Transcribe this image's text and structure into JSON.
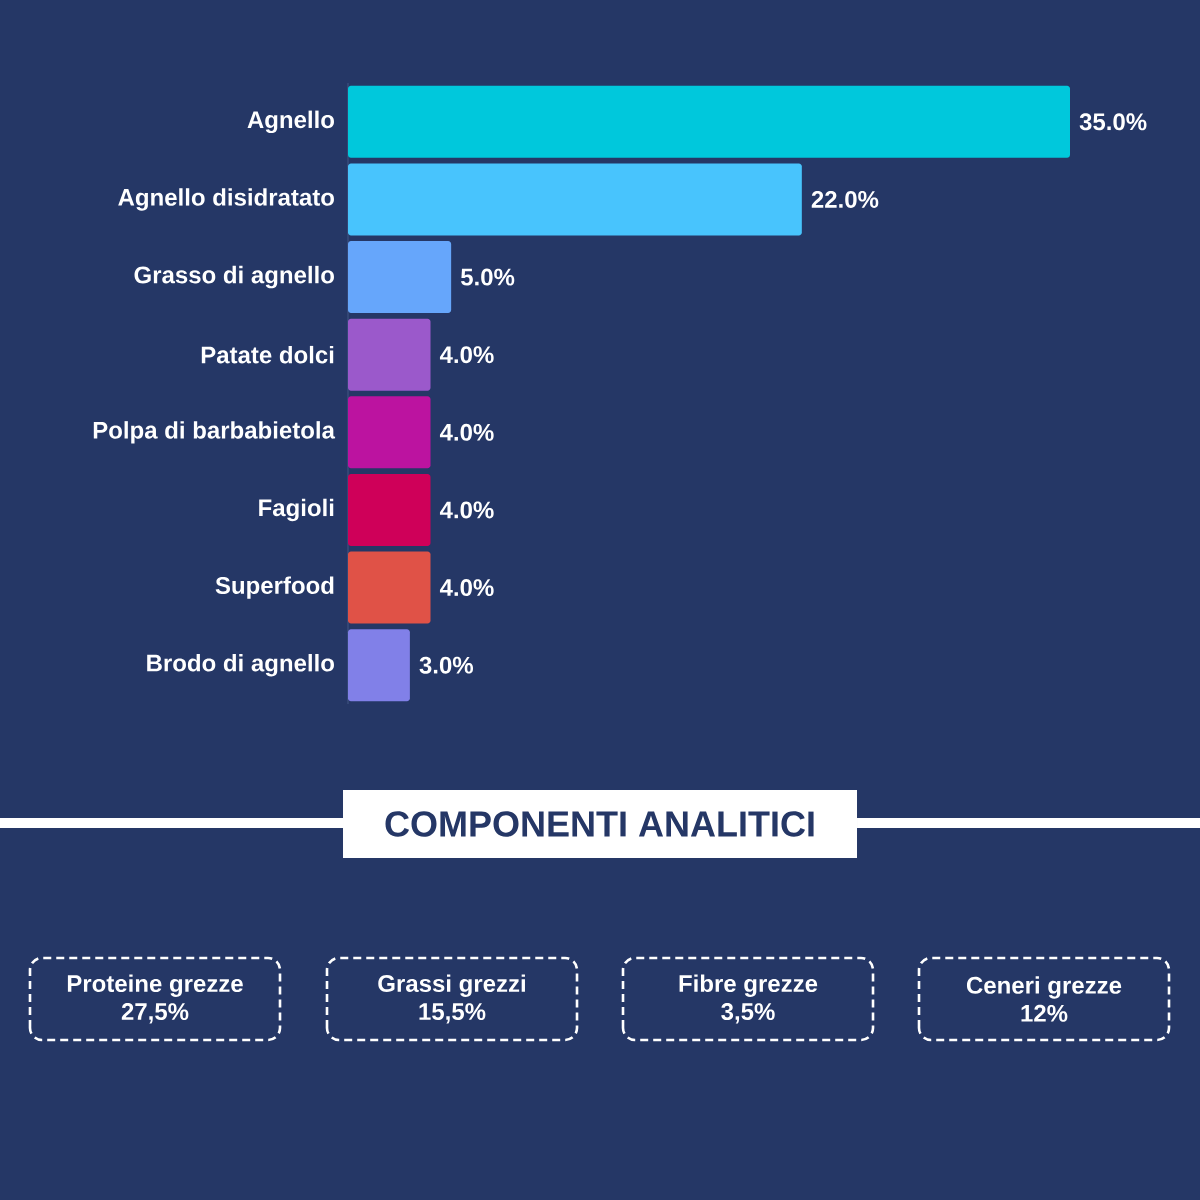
{
  "chart_data": [
    {
      "type": "bar",
      "orientation": "horizontal",
      "categories": [
        "Agnello",
        "Agnello disidratato",
        "Grasso di agnello",
        "Patate dolci",
        "Polpa di barbabietola",
        "Fagioli",
        "Superfood",
        "Brodo di agnello"
      ],
      "values": [
        35,
        22,
        5,
        4,
        4,
        4,
        4,
        3
      ],
      "value_labels": [
        "35.0%",
        "22.0%",
        "5.0%",
        "4.0%",
        "4.0%",
        "4.0%",
        "4.0%",
        "3.0%"
      ],
      "colors": [
        "#00c8dc",
        "#48c4fd",
        "#66a6fb",
        "#9b59cb",
        "#bc13a0",
        "#cf0059",
        "#e05247",
        "#8180e8"
      ],
      "xlim": [
        0,
        35
      ],
      "tick_labels": "y"
    },
    {
      "type": "other",
      "title": "COMPONENTI ANALITICI",
      "categories": [
        "Proteine grezze",
        "Grassi grezzi",
        "Fibre grezze",
        "Ceneri grezze"
      ],
      "value_labels": [
        "27,5%",
        "15,5%",
        "3,5%",
        "12%"
      ]
    }
  ]
}
